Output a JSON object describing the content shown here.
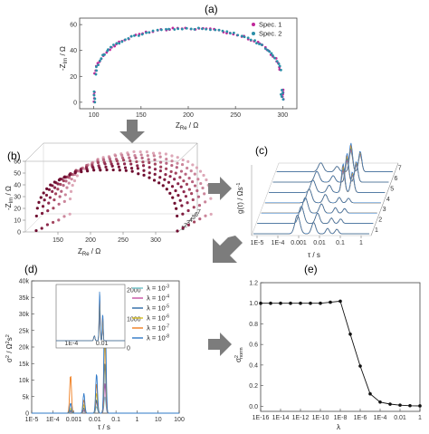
{
  "panel_letters": {
    "a": "(a)",
    "b": "(b)",
    "c": "(c)",
    "d": "(d)",
    "e": "(e)"
  },
  "colors": {
    "spec1": "#c0269a",
    "spec2": "#2a8fa8",
    "maroon": "#7a0f34",
    "arrow": "#777777",
    "lambda_series": [
      "#6fc2c8",
      "#c64fa3",
      "#2a6aa9",
      "#d7bd22",
      "#ef7d1e",
      "#2e78c7"
    ]
  },
  "panel_b": {
    "ylabel": "-Z",
    "ylabel_sub": "Im",
    "ylabel_unit": " / Ω",
    "xlabel": "Z",
    "xlabel_sub": "Re",
    "xlabel_unit": " / Ω",
    "yticks": [
      "0",
      "10",
      "20",
      "30",
      "40",
      "50",
      "60"
    ],
    "xticks": [
      "150",
      "200",
      "250",
      "300"
    ],
    "depth_ticks": [
      "1",
      "2",
      "3",
      "4",
      "5",
      "6",
      "7"
    ]
  },
  "panel_c": {
    "ylabel": "g(τ) / Ωs",
    "ylabel_sup": "-1",
    "xlabel": "τ / s",
    "xticks": [
      "1E-5",
      "1E-4",
      "0.001",
      "0.01",
      "0.1",
      "1"
    ],
    "depth_ticks": [
      "1",
      "2",
      "3",
      "4",
      "5",
      "6",
      "7"
    ]
  },
  "chart_data": [
    {
      "panel": "a",
      "type": "scatter",
      "xlabel": "Z",
      "xlabel_sub": "Re",
      "xlabel_unit": " / Ω",
      "ylabel": "-Z",
      "ylabel_sub": "Im",
      "ylabel_unit": " / Ω",
      "xlim": [
        85,
        315
      ],
      "ylim": [
        -5,
        65
      ],
      "xticks": [
        100,
        150,
        200,
        250,
        300
      ],
      "yticks": [
        0,
        20,
        40,
        60
      ],
      "legend_position": "top-right",
      "semicircle_center": 200,
      "semicircle_radius": 100,
      "semicircle_height": 57,
      "series": [
        {
          "name": "Spec. 1",
          "color": "#c0269a",
          "n_points": 72
        },
        {
          "name": "Spec. 2",
          "color": "#2a8fa8",
          "n_points": 72
        }
      ]
    },
    {
      "panel": "d",
      "type": "line",
      "xlabel": "τ / s",
      "ylabel": "σ",
      "ylabel_sup": "2",
      "ylabel_unit": " / Ω",
      "ylabel_unit_sup": "2",
      "ylabel_unit_tail": "s",
      "ylabel_unit_tail_sup": "2",
      "xscale": "log",
      "xlim": [
        1e-05,
        100
      ],
      "ylim": [
        0,
        40000
      ],
      "xticks": [
        "1E-5",
        "1E-4",
        "0.001",
        "0.01",
        "0.1",
        "1",
        "10",
        "100"
      ],
      "yticks": [
        "0",
        "5k",
        "10k",
        "15k",
        "20k",
        "25k",
        "30k",
        "35k",
        "40k"
      ],
      "legend_position": "top-right",
      "series": [
        {
          "name": "λ = 10",
          "exp": "-3",
          "color": "#6fc2c8",
          "peaks": [
            [
              0.0007,
              400
            ],
            [
              0.003,
              600
            ],
            [
              0.012,
              2000
            ],
            [
              0.03,
              5000
            ]
          ]
        },
        {
          "name": "λ = 10",
          "exp": "-4",
          "color": "#c64fa3",
          "peaks": [
            [
              0.0007,
              600
            ],
            [
              0.003,
              900
            ],
            [
              0.012,
              3500
            ],
            [
              0.03,
              9000
            ]
          ]
        },
        {
          "name": "λ = 10",
          "exp": "-5",
          "color": "#2a6aa9",
          "peaks": [
            [
              0.0007,
              900
            ],
            [
              0.003,
              1500
            ],
            [
              0.012,
              4000
            ],
            [
              0.03,
              15000
            ]
          ]
        },
        {
          "name": "λ = 10",
          "exp": "-6",
          "color": "#d7bd22",
          "peaks": [
            [
              0.0007,
              1500
            ],
            [
              0.003,
              2500
            ],
            [
              0.012,
              6000
            ],
            [
              0.03,
              22000
            ]
          ]
        },
        {
          "name": "λ = 10",
          "exp": "-7",
          "color": "#ef7d1e",
          "peaks": [
            [
              0.0007,
              11500
            ],
            [
              0.003,
              4000
            ],
            [
              0.012,
              9000
            ],
            [
              0.03,
              28000
            ]
          ]
        },
        {
          "name": "λ = 10",
          "exp": "-8",
          "color": "#2e78c7",
          "peaks": [
            [
              0.0007,
              3000
            ],
            [
              0.003,
              6000
            ],
            [
              0.012,
              12000
            ],
            [
              0.03,
              39000
            ]
          ]
        }
      ],
      "inset": {
        "xticks": [
          "1E-4",
          "0.01"
        ],
        "yticks": [
          "0",
          "1000",
          "2000"
        ],
        "ylim": [
          0,
          2300
        ]
      }
    },
    {
      "panel": "e",
      "type": "line",
      "xlabel": "λ",
      "ylabel": "σ",
      "ylabel_sup": "2",
      "ylabel_sub": "norm",
      "xscale": "log",
      "xlim": [
        1e-16,
        1
      ],
      "ylim": [
        -0.05,
        1.2
      ],
      "xticks": [
        "1E-16",
        "1E-14",
        "1E-12",
        "1E-10",
        "1E-8",
        "1E-6",
        "1E-4",
        "0.01",
        "1"
      ],
      "yticks": [
        "0.0",
        "0.2",
        "0.4",
        "0.6",
        "0.8",
        "1.0",
        "1.2"
      ],
      "x": [
        1e-16,
        1e-15,
        1e-14,
        1e-13,
        1e-12,
        1e-11,
        1e-10,
        1e-09,
        1e-08,
        1e-07,
        1e-06,
        1e-05,
        0.0001,
        0.001,
        0.01,
        0.1,
        1
      ],
      "y": [
        1.0,
        1.0,
        1.0,
        1.0,
        1.0,
        1.0,
        1.0,
        1.01,
        1.02,
        0.7,
        0.39,
        0.12,
        0.04,
        0.02,
        0.01,
        0.005,
        0.003
      ]
    }
  ]
}
